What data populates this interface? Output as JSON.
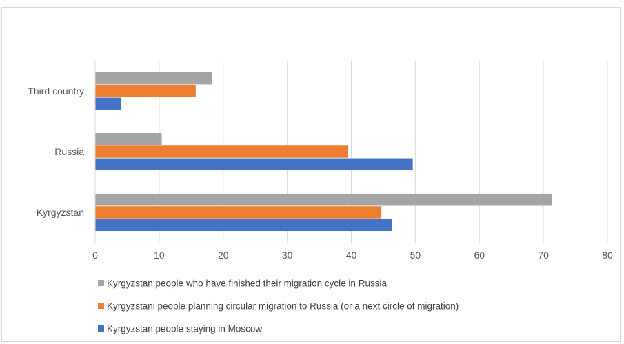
{
  "chart_data": {
    "type": "bar",
    "orientation": "horizontal",
    "categories": [
      "Kyrgyzstan",
      "Russia",
      "Third country"
    ],
    "series": [
      {
        "name": "Kyrgyzstan people staying in Moscow",
        "color": "#4472c4",
        "values": [
          46.3,
          49.6,
          4.0
        ]
      },
      {
        "name": "Kyrgyzstani people planning circular migration to Russia (or a next circle of migration)",
        "color": "#ed7d31",
        "values": [
          44.7,
          39.5,
          15.7
        ]
      },
      {
        "name": "Kyrgyzstan people who have finished their migration cycle in Russia",
        "color": "#a5a5a5",
        "values": [
          71.3,
          10.4,
          18.2
        ]
      }
    ],
    "xlim": [
      0,
      80
    ],
    "xticks": [
      "0",
      "10",
      "20",
      "30",
      "40",
      "50",
      "60",
      "70",
      "80"
    ],
    "grid": true,
    "legend_position": "bottom",
    "legend_order": [
      2,
      1,
      0
    ],
    "title": "",
    "xlabel": "",
    "ylabel": ""
  }
}
